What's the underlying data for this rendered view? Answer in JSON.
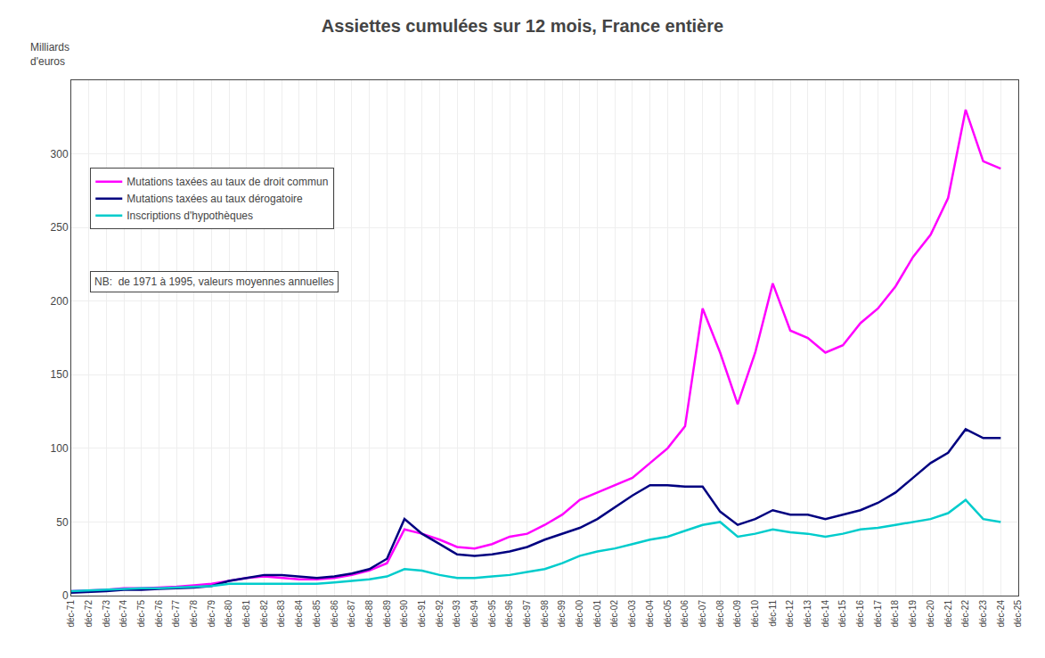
{
  "chart_data": {
    "type": "line",
    "title": "Assiettes cumulées sur 12 mois, France entière",
    "ylabel": "Milliards\nd'euros",
    "annotations": [
      "NB:  de 1971 à 1995, valeurs moyennes annuelles"
    ],
    "x": [
      1971,
      1972,
      1973,
      1974,
      1975,
      1976,
      1977,
      1978,
      1979,
      1980,
      1981,
      1982,
      1983,
      1984,
      1985,
      1986,
      1987,
      1988,
      1989,
      1990,
      1991,
      1992,
      1993,
      1994,
      1995,
      1996,
      1997,
      1998,
      1999,
      2000,
      2001,
      2002,
      2003,
      2004,
      2005,
      2006,
      2007,
      2008,
      2009,
      2010,
      2011,
      2012,
      2013,
      2014,
      2015,
      2016,
      2017,
      2018,
      2019,
      2020,
      2021,
      2022,
      2023,
      2024
    ],
    "series": [
      {
        "name": "Mutations taxées au taux de droit commun",
        "color": "#FF00FF",
        "values": [
          3,
          3.5,
          4,
          5,
          5,
          5.5,
          6,
          7,
          8,
          10,
          12,
          13,
          12,
          11,
          11,
          12,
          14,
          17,
          22,
          45,
          42,
          38,
          33,
          32,
          35,
          40,
          42,
          48,
          55,
          65,
          70,
          75,
          80,
          90,
          100,
          115,
          195,
          165,
          130,
          165,
          212,
          180,
          175,
          165,
          170,
          185,
          195,
          210,
          230,
          245,
          270,
          330,
          295,
          290
        ]
      },
      {
        "name": "Mutations taxées au taux dérogatoire",
        "color": "#000080",
        "values": [
          2,
          2.5,
          3,
          4,
          4,
          4.5,
          5,
          5.5,
          6.5,
          10,
          12,
          14,
          14,
          13,
          12,
          13,
          15,
          18,
          25,
          52,
          42,
          35,
          28,
          27,
          28,
          30,
          33,
          38,
          42,
          46,
          52,
          60,
          68,
          75,
          75,
          74,
          74,
          57,
          48,
          52,
          58,
          55,
          55,
          52,
          55,
          58,
          63,
          70,
          80,
          90,
          97,
          113,
          107,
          107
        ]
      },
      {
        "name": "Inscriptions d'hypothèques",
        "color": "#00CCCC",
        "values": [
          3,
          3.5,
          4,
          4.5,
          5,
          5,
          5.5,
          6,
          6.5,
          8,
          8,
          8,
          8,
          8,
          8,
          9,
          10,
          11,
          13,
          18,
          17,
          14,
          12,
          12,
          13,
          14,
          16,
          18,
          22,
          27,
          30,
          32,
          35,
          38,
          40,
          44,
          48,
          50,
          40,
          42,
          45,
          43,
          42,
          40,
          42,
          45,
          46,
          48,
          50,
          52,
          56,
          65,
          52,
          50
        ]
      }
    ],
    "xlim": [
      1971,
      2025
    ],
    "xticks": [
      {
        "value": 1971,
        "label": "déc-71"
      },
      {
        "value": 1972,
        "label": "déc-72"
      },
      {
        "value": 1973,
        "label": "déc-73"
      },
      {
        "value": 1974,
        "label": "déc-74"
      },
      {
        "value": 1975,
        "label": "déc-75"
      },
      {
        "value": 1976,
        "label": "déc-76"
      },
      {
        "value": 1977,
        "label": "déc-77"
      },
      {
        "value": 1978,
        "label": "déc-78"
      },
      {
        "value": 1979,
        "label": "déc-79"
      },
      {
        "value": 1980,
        "label": "déc-80"
      },
      {
        "value": 1981,
        "label": "déc-81"
      },
      {
        "value": 1982,
        "label": "déc-82"
      },
      {
        "value": 1983,
        "label": "déc-83"
      },
      {
        "value": 1984,
        "label": "déc-84"
      },
      {
        "value": 1985,
        "label": "déc-85"
      },
      {
        "value": 1986,
        "label": "déc-86"
      },
      {
        "value": 1987,
        "label": "déc-87"
      },
      {
        "value": 1988,
        "label": "déc-88"
      },
      {
        "value": 1989,
        "label": "déc-89"
      },
      {
        "value": 1990,
        "label": "déc-90"
      },
      {
        "value": 1991,
        "label": "déc-91"
      },
      {
        "value": 1992,
        "label": "déc-92"
      },
      {
        "value": 1993,
        "label": "déc-93"
      },
      {
        "value": 1994,
        "label": "déc-94"
      },
      {
        "value": 1995,
        "label": "déc-95"
      },
      {
        "value": 1996,
        "label": "déc-96"
      },
      {
        "value": 1997,
        "label": "déc-97"
      },
      {
        "value": 1998,
        "label": "déc-98"
      },
      {
        "value": 1999,
        "label": "déc-99"
      },
      {
        "value": 2000,
        "label": "déc-00"
      },
      {
        "value": 2001,
        "label": "déc-01"
      },
      {
        "value": 2002,
        "label": "déc-02"
      },
      {
        "value": 2003,
        "label": "déc-03"
      },
      {
        "value": 2004,
        "label": "déc-04"
      },
      {
        "value": 2005,
        "label": "déc-05"
      },
      {
        "value": 2006,
        "label": "déc-06"
      },
      {
        "value": 2007,
        "label": "déc-07"
      },
      {
        "value": 2008,
        "label": "déc-08"
      },
      {
        "value": 2009,
        "label": "déc-09"
      },
      {
        "value": 2010,
        "label": "déc-10"
      },
      {
        "value": 2011,
        "label": "déc-11"
      },
      {
        "value": 2012,
        "label": "déc-12"
      },
      {
        "value": 2013,
        "label": "déc-13"
      },
      {
        "value": 2014,
        "label": "déc-14"
      },
      {
        "value": 2015,
        "label": "déc-15"
      },
      {
        "value": 2016,
        "label": "déc-16"
      },
      {
        "value": 2017,
        "label": "déc-17"
      },
      {
        "value": 2018,
        "label": "déc-18"
      },
      {
        "value": 2019,
        "label": "déc-19"
      },
      {
        "value": 2020,
        "label": "déc-20"
      },
      {
        "value": 2021,
        "label": "déc-21"
      },
      {
        "value": 2022,
        "label": "déc-22"
      },
      {
        "value": 2023,
        "label": "déc-23"
      },
      {
        "value": 2024,
        "label": "déc-24"
      },
      {
        "value": 2025,
        "label": "déc-25"
      }
    ],
    "ylim": [
      0,
      350
    ],
    "yticks": [
      0,
      50,
      100,
      150,
      200,
      250,
      300
    ],
    "grid": true,
    "legend": "upper left"
  }
}
